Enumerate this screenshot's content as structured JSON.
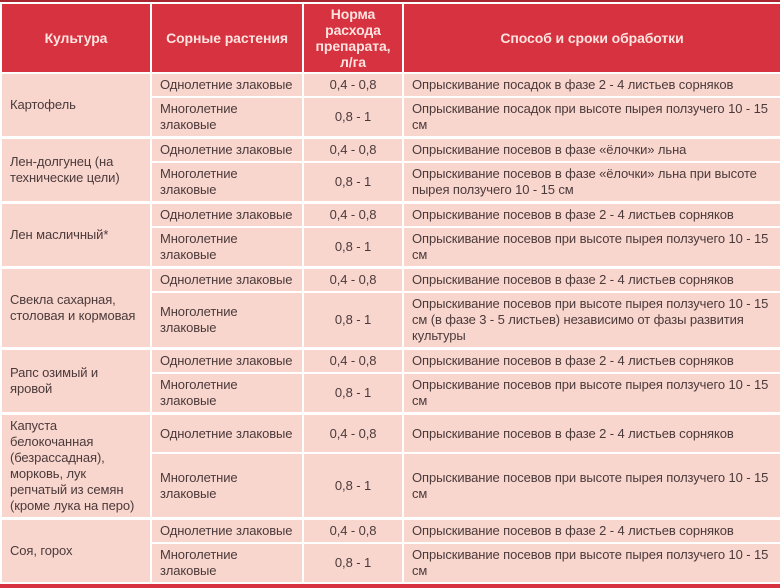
{
  "colors": {
    "header_bg": "#d6323f",
    "header_text": "#ffe3e0",
    "row_bg": "#f8d6ce",
    "body_text": "#4b3a3a",
    "top_border": "#a8262f",
    "separator": "#ffffff"
  },
  "table": {
    "headers": [
      "Культура",
      "Сорные растения",
      "Норма расхода препарата, л/га",
      "Способ и сроки обработки"
    ],
    "groups": [
      {
        "crop": "Картофель",
        "rows": [
          {
            "weeds": "Однолетние злаковые",
            "rate": "0,4 - 0,8",
            "method": "Опрыскивание посадок в фазе 2 - 4 листьев сорняков"
          },
          {
            "weeds": "Многолетние злаковые",
            "rate": "0,8 - 1",
            "method": "Опрыскивание посадок при высоте пырея ползучего 10 - 15 см"
          }
        ]
      },
      {
        "crop": "Лен-долгунец (на технические цели)",
        "rows": [
          {
            "weeds": "Однолетние злаковые",
            "rate": "0,4 - 0,8",
            "method": "Опрыскивание посевов в фазе «ёлочки» льна"
          },
          {
            "weeds": "Многолетние злаковые",
            "rate": "0,8 - 1",
            "method": "Опрыскивание посевов в фазе «ёлочки» льна при высоте пырея ползучего 10 - 15 см"
          }
        ]
      },
      {
        "crop": "Лен масличный*",
        "rows": [
          {
            "weeds": "Однолетние злаковые",
            "rate": "0,4 - 0,8",
            "method": "Опрыскивание посевов в фазе 2 - 4 листьев сорняков"
          },
          {
            "weeds": "Многолетние злаковые",
            "rate": "0,8 - 1",
            "method": "Опрыскивание посевов при высоте пырея ползучего 10 - 15 см"
          }
        ]
      },
      {
        "crop": "Свекла сахарная, столовая и кормовая",
        "rows": [
          {
            "weeds": "Однолетние злаковые",
            "rate": "0,4 - 0,8",
            "method": "Опрыскивание посевов в фазе 2 - 4 листьев сорняков"
          },
          {
            "weeds": "Многолетние злаковые",
            "rate": "0,8 - 1",
            "method": "Опрыскивание посевов при высоте пырея ползучего 10 - 15 см (в фазе 3 - 5 листьев) независимо от фазы развития культуры"
          }
        ]
      },
      {
        "crop": "Рапс озимый и яровой",
        "rows": [
          {
            "weeds": "Однолетние злаковые",
            "rate": "0,4 - 0,8",
            "method": "Опрыскивание посевов в фазе 2 - 4 листьев сорняков"
          },
          {
            "weeds": "Многолетние злаковые",
            "rate": "0,8 - 1",
            "method": "Опрыскивание посевов при высоте пырея ползучего 10 - 15 см"
          }
        ]
      },
      {
        "crop": "Капуста белокочанная (безрассадная), морковь, лук репчатый из семян (кроме лука на перо)",
        "rows": [
          {
            "weeds": "Однолетние злаковые",
            "rate": "0,4 - 0,8",
            "method": "Опрыскивание посевов в фазе 2 - 4 листьев сорняков"
          },
          {
            "weeds": "Многолетние злаковые",
            "rate": "0,8 - 1",
            "method": "Опрыскивание посевов при высоте пырея ползучего 10 - 15 см"
          }
        ]
      },
      {
        "crop": "Соя, горох",
        "rows": [
          {
            "weeds": "Однолетние злаковые",
            "rate": "0,4 - 0,8",
            "method": "Опрыскивание посевов в фазе 2 - 4 листьев сорняков"
          },
          {
            "weeds": "Многолетние злаковые",
            "rate": "0,8 - 1",
            "method": "Опрыскивание посевов при высоте пырея ползучего 10 - 15 см"
          }
        ]
      }
    ]
  }
}
